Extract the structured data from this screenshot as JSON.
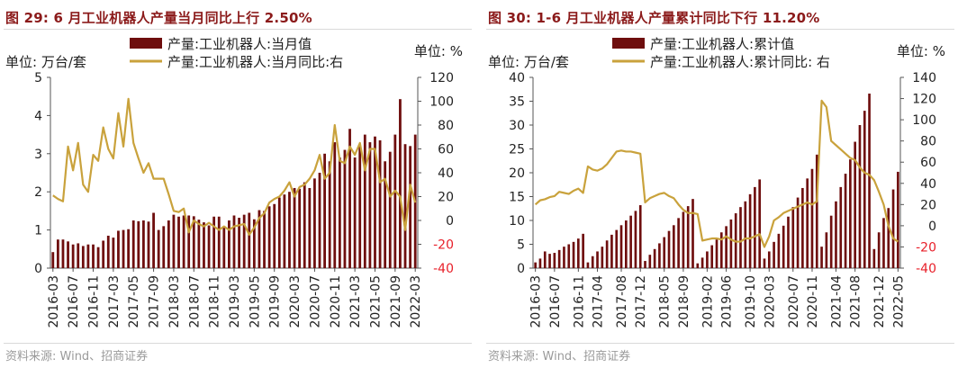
{
  "colors": {
    "bar": "#6e0e0e",
    "line": "#c9a23c",
    "title": "#8b1a1a",
    "right_axis_negative": "#e8202a",
    "source": "#9a9a9a"
  },
  "chart_data": [
    {
      "type": "bar",
      "title": "图 29:  6 月工业机器人产量当月同比上行 2.50%",
      "source": "资料来源: Wind、招商证券",
      "left_unit": "单位: 万台/套",
      "right_unit": "单位: %",
      "ylim": [
        0,
        5
      ],
      "y_ticks": [
        0,
        1,
        2,
        3,
        4,
        5
      ],
      "y2lim": [
        -40,
        120
      ],
      "y2_ticks": [
        -40,
        -20,
        0,
        20,
        40,
        60,
        80,
        100,
        120
      ],
      "x_ticks": [
        "2016-03",
        "2016-07",
        "2016-11",
        "2017-03",
        "2017-05",
        "2017-09",
        "2018-03",
        "2018-07",
        "2018-11",
        "2019-03",
        "2019-05",
        "2019-09",
        "2020-03",
        "2020-07",
        "2020-11",
        "2021-03",
        "2021-05",
        "2021-09",
        "2022-03"
      ],
      "series": [
        {
          "name": "产量:工业机器人:当月值",
          "type": "bar",
          "axis": "left",
          "values": [
            0.42,
            0.75,
            0.75,
            0.7,
            0.62,
            0.65,
            0.58,
            0.62,
            0.62,
            0.55,
            0.72,
            0.85,
            0.8,
            0.98,
            1.0,
            1.02,
            1.25,
            1.23,
            1.25,
            1.22,
            1.45,
            1.0,
            1.1,
            1.25,
            1.4,
            1.35,
            1.38,
            1.38,
            1.36,
            1.27,
            1.2,
            1.12,
            1.35,
            1.35,
            1.1,
            1.25,
            1.38,
            1.32,
            1.4,
            1.45,
            1.28,
            1.52,
            1.5,
            1.62,
            1.68,
            1.85,
            1.93,
            2.0,
            2.1,
            2.08,
            2.25,
            2.1,
            2.35,
            2.5,
            3.0,
            2.8,
            3.3,
            2.9,
            3.1,
            3.65,
            2.9,
            3.2,
            3.5,
            3.3,
            3.45,
            3.35,
            2.8,
            3.05,
            3.5,
            4.43,
            3.25,
            3.2,
            3.5
          ]
        },
        {
          "name": "产量:工业机器人:当月同比:右",
          "type": "line",
          "axis": "right",
          "values": [
            21,
            18,
            16,
            62,
            42,
            65,
            30,
            24,
            55,
            50,
            78,
            60,
            52,
            90,
            62,
            102,
            65,
            52,
            40,
            48,
            35,
            35,
            35,
            22,
            8,
            7,
            10,
            -10,
            0,
            -3,
            -5,
            -2,
            -5,
            -8,
            -5,
            -8,
            -5,
            -4,
            -3,
            -12,
            -6,
            2,
            6,
            15,
            18,
            20,
            25,
            32,
            20,
            28,
            30,
            35,
            42,
            55,
            35,
            40,
            80,
            50,
            48,
            62,
            55,
            65,
            42,
            60,
            60,
            32,
            35,
            20,
            25,
            20,
            -8,
            30,
            15
          ]
        }
      ]
    },
    {
      "type": "bar",
      "title": "图 30:  1-6 月工业机器人产量累计同比下行 11.20%",
      "source": "资料来源: Wind、招商证券",
      "left_unit": "单位: 万台/套",
      "right_unit": "单位: %",
      "ylim": [
        0,
        40
      ],
      "y_ticks": [
        0,
        5,
        10,
        15,
        20,
        25,
        30,
        35,
        40
      ],
      "y2lim": [
        -40,
        140
      ],
      "y2_ticks": [
        -40,
        -20,
        0,
        20,
        40,
        60,
        80,
        100,
        120,
        140
      ],
      "x_ticks": [
        "2016-03",
        "2016-07",
        "2016-11",
        "2017-04",
        "2017-08",
        "2017-12",
        "2018-05",
        "2018-09",
        "2019-02",
        "2019-06",
        "2019-10",
        "2020-03",
        "2020-07",
        "2020-11",
        "2021-04",
        "2021-08",
        "2021-12",
        "2022-05"
      ],
      "series": [
        {
          "name": "产量:工业机器人:累计值",
          "type": "bar",
          "axis": "left",
          "values": [
            1.2,
            2.0,
            3.5,
            3.0,
            3.2,
            3.8,
            4.5,
            5.0,
            5.5,
            6.2,
            7.2,
            1.2,
            2.5,
            3.5,
            4.5,
            5.8,
            7.0,
            8.0,
            9.0,
            10.0,
            11.0,
            12.0,
            13.2,
            1.5,
            2.8,
            4.0,
            5.2,
            6.5,
            7.8,
            9.0,
            10.5,
            11.8,
            13.0,
            14.5,
            1.0,
            2.2,
            3.5,
            4.8,
            6.0,
            7.5,
            8.8,
            10.2,
            11.5,
            12.8,
            14.0,
            15.5,
            17.0,
            18.6,
            2.0,
            3.5,
            5.5,
            7.2,
            8.9,
            10.8,
            12.8,
            14.8,
            16.8,
            18.8,
            20.8,
            23.8,
            4.5,
            7.5,
            11.0,
            14.0,
            17.0,
            19.8,
            22.8,
            26.5,
            30.0,
            33.0,
            36.6,
            4.0,
            7.5,
            10.5,
            12.6,
            16.5,
            20.2
          ]
        },
        {
          "name": "产量:工业机器人:累计同比: 右",
          "type": "line",
          "axis": "right",
          "values": [
            20,
            24,
            25,
            27,
            28,
            32,
            31,
            30,
            33,
            35,
            31,
            56,
            53,
            52,
            54,
            58,
            64,
            70,
            71,
            70,
            70,
            69,
            68,
            22,
            26,
            28,
            30,
            31,
            28,
            26,
            20,
            15,
            12,
            12,
            11,
            -14,
            -13,
            -12,
            -12,
            -13,
            -10,
            -13,
            -15,
            -15,
            -12,
            -12,
            -10,
            -8,
            -20,
            -10,
            5,
            8,
            12,
            14,
            16,
            18,
            20,
            22,
            20,
            23,
            118,
            112,
            80,
            76,
            72,
            68,
            64,
            62,
            55,
            50,
            48,
            43,
            32,
            20,
            0,
            -12,
            -15
          ]
        }
      ]
    }
  ]
}
